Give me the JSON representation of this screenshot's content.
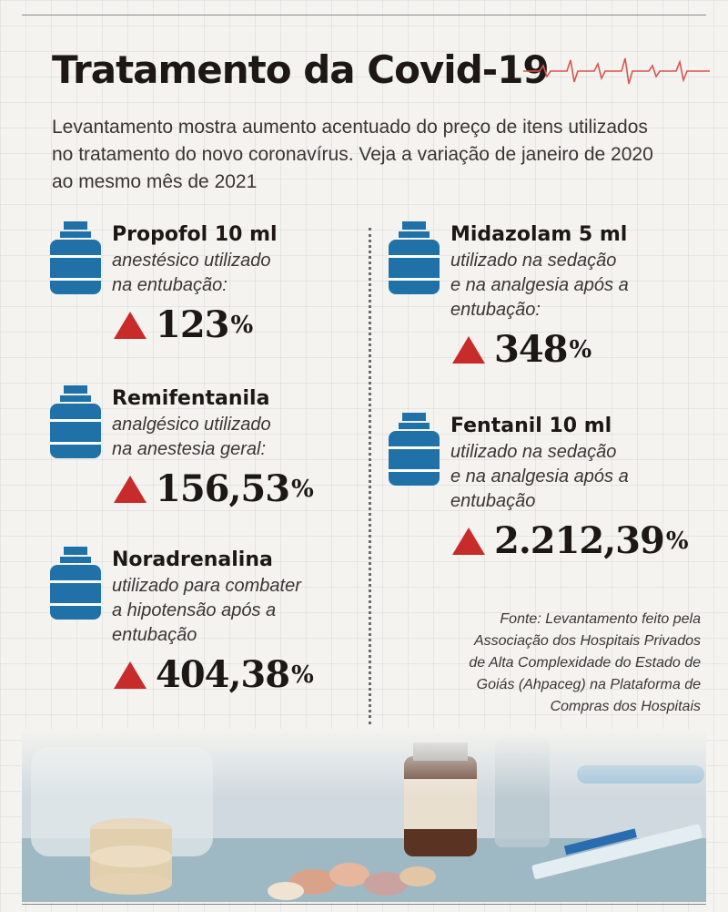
{
  "title": "Tratamento da Covid-19",
  "intro": "Levantamento mostra aumento acentuado do preço de itens utilizados no tratamento do novo coronavírus. Veja a variação de janeiro de 2020 ao mesmo mês de 2021",
  "colors": {
    "accent_blue": "#2171a9",
    "arrow_red": "#c72c2b",
    "ecg_red": "#d9544e"
  },
  "icons": {
    "item_icon": "medicine-bottle-icon",
    "change_icon": "red-up-triangle-icon"
  },
  "items": [
    {
      "name": "Propofol 10 ml",
      "description": "anestésico utilizado\nna entubação:",
      "change": "123",
      "percent_sign": "%"
    },
    {
      "name": "Remifentanila",
      "description": "analgésico utilizado\nna anestesia geral:",
      "change": "156,53",
      "percent_sign": "%"
    },
    {
      "name": "Noradrenalina",
      "description": "utilizado para combater\na hipotensão após a\nentubação",
      "change": "404,38",
      "percent_sign": "%"
    },
    {
      "name": "Midazolam 5 ml",
      "description": "utilizado na sedação\ne na analgesia após a\nentubação:",
      "change": "348",
      "percent_sign": "%"
    },
    {
      "name": "Fentanil 10 ml",
      "description": "utilizado na sedação\ne na analgesia após a\nentubação",
      "change": "2.212,39",
      "percent_sign": "%"
    }
  ],
  "source": "Fonte: Levantamento feito pela\nAssociação dos Hospitais Privados\nde Alta Complexidade do Estado de\nGoiás (Ahpaceg) na Plataforma de\nCompras dos Hospitais"
}
